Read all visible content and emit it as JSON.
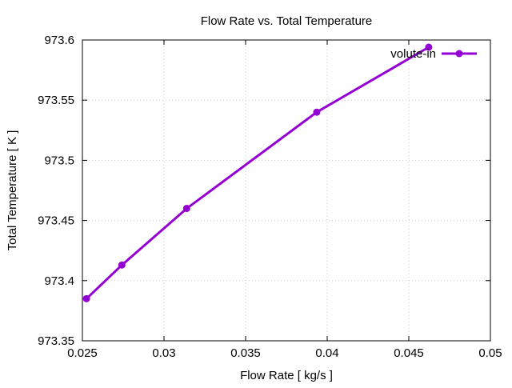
{
  "chart_data": {
    "type": "line",
    "title": "Flow Rate vs. Total Temperature",
    "xlabel": "Flow Rate [ kg/s ]",
    "ylabel": "Total Temperature [ K ]",
    "xlim": [
      0.025,
      0.05
    ],
    "ylim": [
      973.35,
      973.6
    ],
    "xticks": [
      "0.025",
      "0.03",
      "0.035",
      "0.04",
      "0.045",
      "0.05"
    ],
    "yticks": [
      "973.35",
      "973.4",
      "973.45",
      "973.5",
      "973.55",
      "973.6"
    ],
    "grid": true,
    "legend_position": "top-right",
    "series": [
      {
        "name": "volute-in",
        "color": "#9400d3",
        "x": [
          0.02525,
          0.02742,
          0.03139,
          0.03936,
          0.04622
        ],
        "y": [
          973.385,
          973.413,
          973.46,
          973.54,
          973.594
        ]
      }
    ]
  }
}
